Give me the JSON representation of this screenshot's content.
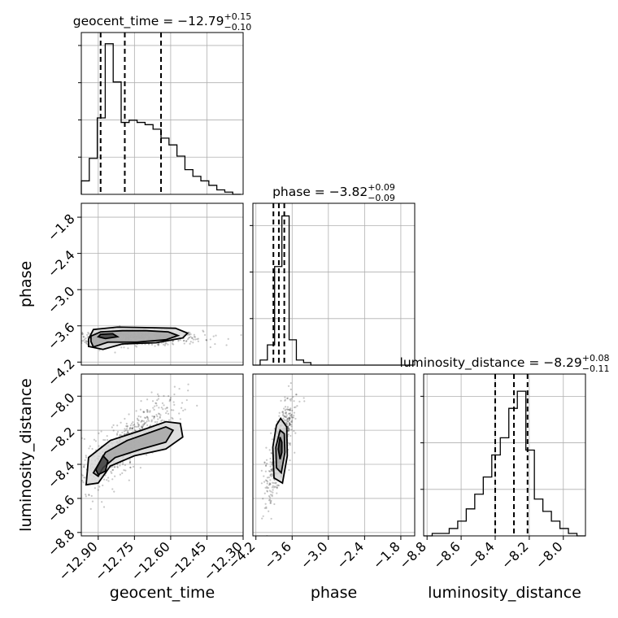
{
  "chart_data": {
    "type": "corner",
    "params": [
      "geocent_time",
      "phase",
      "luminosity_distance"
    ],
    "ranges": {
      "geocent_time": [
        -12.97,
        -12.3
      ],
      "phase": [
        -4.25,
        -1.57
      ],
      "luminosity_distance": [
        -8.82,
        -7.87
      ]
    },
    "grid": true,
    "axis_labels": {
      "geocent_time": "geocent_time",
      "phase": "phase",
      "luminosity_distance": "luminosity_distance"
    },
    "titles": [
      {
        "param": "geocent_time",
        "prefix": "geocent_time = ",
        "median": "−12.79",
        "upper": "+0.15",
        "lower": "−0.10"
      },
      {
        "param": "phase",
        "prefix": "phase = ",
        "median": "−3.82",
        "upper": "+0.09",
        "lower": "−0.09"
      },
      {
        "param": "luminosity_distance",
        "prefix": "luminosity_distance = ",
        "median": "−8.29",
        "upper": "+0.08",
        "lower": "−0.11"
      }
    ],
    "ticks": {
      "geocent_time": {
        "values": [
          -12.9,
          -12.75,
          -12.6,
          -12.45,
          -12.3
        ],
        "labels": [
          "−12.90",
          "−12.75",
          "−12.60",
          "−12.45",
          "−12.30"
        ]
      },
      "phase": {
        "values": [
          -4.2,
          -3.6,
          -3.0,
          -2.4,
          -1.8
        ],
        "labels": [
          "−4.2",
          "−3.6",
          "−3.0",
          "−2.4",
          "−1.8"
        ]
      },
      "luminosity_distance": {
        "values": [
          -8.8,
          -8.6,
          -8.4,
          -8.2,
          -8.0
        ],
        "labels": [
          "−8.8",
          "−8.6",
          "−8.4",
          "−8.2",
          "−8.0"
        ]
      }
    },
    "hist_geocent_time": {
      "edges": [
        -12.97,
        -12.937,
        -12.904,
        -12.871,
        -12.838,
        -12.805,
        -12.772,
        -12.739,
        -12.706,
        -12.673,
        -12.64,
        -12.607,
        -12.574,
        -12.541,
        -12.508,
        -12.475,
        -12.442,
        -12.409,
        -12.376,
        -12.343,
        -12.31
      ],
      "counts": [
        6,
        16,
        34,
        67,
        50,
        32,
        33,
        32,
        31,
        29,
        25,
        22,
        17,
        11,
        8,
        6,
        4,
        2,
        1,
        0
      ],
      "ymax": 72,
      "quantiles": [
        -12.89,
        -12.79,
        -12.64
      ]
    },
    "hist_phase": {
      "edges": [
        -4.25,
        -4.13,
        -4.01,
        -3.89,
        -3.77,
        -3.65,
        -3.53,
        -3.41,
        -3.29,
        -3.17,
        -3.05,
        -2.93,
        -2.81,
        -2.69,
        -2.57,
        -2.45,
        -2.33,
        -2.21,
        -2.09,
        -1.97,
        -1.85,
        -1.73,
        -1.61
      ],
      "counts": [
        0,
        2,
        8,
        39,
        59,
        10,
        2,
        1,
        0,
        0,
        0,
        0,
        0,
        0,
        0,
        0,
        0,
        0,
        0,
        0,
        0,
        0
      ],
      "ymax": 64,
      "quantiles": [
        -3.91,
        -3.82,
        -3.73
      ]
    },
    "hist_luminosity_distance": {
      "edges": [
        -8.82,
        -8.77,
        -8.72,
        -8.67,
        -8.62,
        -8.57,
        -8.52,
        -8.47,
        -8.42,
        -8.37,
        -8.32,
        -8.27,
        -8.22,
        -8.17,
        -8.12,
        -8.07,
        -8.02,
        -7.97,
        -7.92,
        -7.87
      ],
      "counts": [
        0,
        1,
        1,
        3,
        6,
        11,
        17,
        24,
        33,
        40,
        52,
        59,
        35,
        15,
        10,
        6,
        3,
        1,
        0
      ],
      "ymax": 66,
      "quantiles": [
        -8.4,
        -8.29,
        -8.21
      ]
    },
    "scatter_geocent_vs_phase": {
      "x_center": -12.83,
      "y_center": -3.8,
      "sx": 0.1,
      "sy": 0.06,
      "modes": [
        {
          "x": -12.86,
          "y": -3.78
        },
        {
          "x": -12.75,
          "y": -3.76
        },
        {
          "x": -12.9,
          "y": -3.96
        }
      ],
      "contours": [
        [
          [
            -12.93,
            -3.77
          ],
          [
            -12.89,
            -3.7
          ],
          [
            -12.8,
            -3.68
          ],
          [
            -12.7,
            -3.68
          ],
          [
            -12.61,
            -3.7
          ],
          [
            -12.57,
            -3.76
          ],
          [
            -12.62,
            -3.83
          ],
          [
            -12.74,
            -3.87
          ],
          [
            -12.86,
            -3.87
          ],
          [
            -12.92,
            -3.95
          ],
          [
            -12.93,
            -3.86
          ]
        ],
        [
          [
            -12.94,
            -3.82
          ],
          [
            -12.92,
            -3.66
          ],
          [
            -12.82,
            -3.62
          ],
          [
            -12.68,
            -3.63
          ],
          [
            -12.58,
            -3.64
          ],
          [
            -12.53,
            -3.72
          ],
          [
            -12.55,
            -3.8
          ],
          [
            -12.66,
            -3.88
          ],
          [
            -12.8,
            -3.9
          ],
          [
            -12.88,
            -3.99
          ],
          [
            -12.94,
            -3.94
          ]
        ],
        [
          [
            -12.89,
            -3.74
          ],
          [
            -12.84,
            -3.73
          ],
          [
            -12.82,
            -3.78
          ],
          [
            -12.87,
            -3.81
          ],
          [
            -12.9,
            -3.78
          ]
        ]
      ]
    },
    "scatter_geocent_vs_distance": {
      "x_center": -12.8,
      "y_center": -8.3,
      "rho": 0.85,
      "sx": 0.09,
      "sy": 0.12,
      "contours": [
        [
          [
            -12.92,
            -8.45
          ],
          [
            -12.87,
            -8.33
          ],
          [
            -12.78,
            -8.26
          ],
          [
            -12.68,
            -8.21
          ],
          [
            -12.62,
            -8.18
          ],
          [
            -12.59,
            -8.2
          ],
          [
            -12.62,
            -8.27
          ],
          [
            -12.72,
            -8.31
          ],
          [
            -12.83,
            -8.36
          ],
          [
            -12.88,
            -8.42
          ],
          [
            -12.9,
            -8.47
          ]
        ],
        [
          [
            -12.95,
            -8.52
          ],
          [
            -12.94,
            -8.36
          ],
          [
            -12.85,
            -8.26
          ],
          [
            -12.72,
            -8.2
          ],
          [
            -12.62,
            -8.15
          ],
          [
            -12.56,
            -8.16
          ],
          [
            -12.55,
            -8.24
          ],
          [
            -12.62,
            -8.31
          ],
          [
            -12.75,
            -8.35
          ],
          [
            -12.85,
            -8.41
          ],
          [
            -12.9,
            -8.51
          ]
        ],
        [
          [
            -12.91,
            -8.43
          ],
          [
            -12.88,
            -8.35
          ],
          [
            -12.86,
            -8.38
          ],
          [
            -12.87,
            -8.44
          ],
          [
            -12.9,
            -8.46
          ]
        ]
      ]
    },
    "scatter_phase_vs_distance": {
      "x_center": -3.8,
      "y_center": -8.3,
      "rho": 0.75,
      "sx": 0.09,
      "sy": 0.12,
      "contours": [
        [
          [
            -3.8,
            -8.2
          ],
          [
            -3.73,
            -8.22
          ],
          [
            -3.72,
            -8.33
          ],
          [
            -3.78,
            -8.45
          ],
          [
            -3.86,
            -8.42
          ],
          [
            -3.87,
            -8.3
          ]
        ],
        [
          [
            -3.79,
            -8.13
          ],
          [
            -3.69,
            -8.18
          ],
          [
            -3.68,
            -8.35
          ],
          [
            -3.76,
            -8.51
          ],
          [
            -3.9,
            -8.48
          ],
          [
            -3.92,
            -8.3
          ],
          [
            -3.86,
            -8.17
          ]
        ],
        [
          [
            -3.8,
            -8.24
          ],
          [
            -3.77,
            -8.27
          ],
          [
            -3.77,
            -8.33
          ],
          [
            -3.8,
            -8.37
          ],
          [
            -3.83,
            -8.31
          ]
        ]
      ]
    }
  }
}
